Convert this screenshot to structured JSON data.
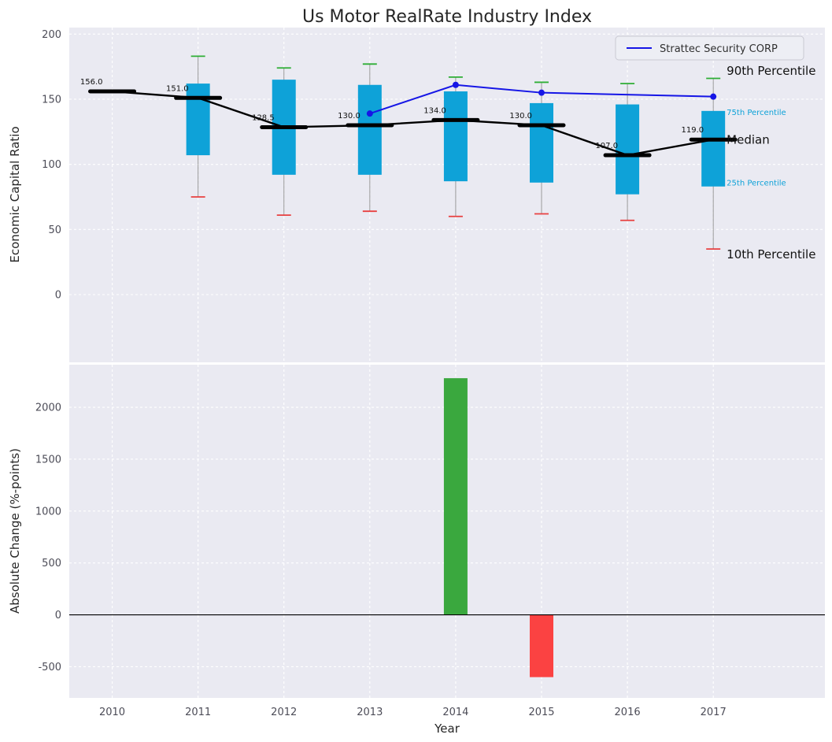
{
  "chart": {
    "title": "Us Motor RealRate Industry Index",
    "colors": {
      "panel_bg": "#eaeaf2",
      "grid": "#ffffff",
      "box_fill": "#0ea2d8",
      "whisker": "#9a9a9a",
      "cap_top": "#2eae35",
      "cap_bottom": "#e84040",
      "median": "#000000",
      "company_line": "#1616e6",
      "bar_positive": "#3aa83e",
      "bar_negative": "#fb4242"
    }
  },
  "chart_data": [
    {
      "type": "box",
      "title": "Us Motor RealRate Industry Index",
      "ylabel": "Economic Capital Ratio",
      "categories": [
        "2010",
        "2011",
        "2012",
        "2013",
        "2014",
        "2015",
        "2016",
        "2017"
      ],
      "p90": [
        156,
        183,
        174,
        177,
        167,
        163,
        162,
        166
      ],
      "p75": [
        156,
        162,
        165,
        161,
        156,
        147,
        146,
        141
      ],
      "median": [
        156,
        151,
        128.5,
        130,
        134,
        130,
        107,
        119
      ],
      "p25": [
        156,
        107,
        92,
        92,
        87,
        86,
        77,
        83
      ],
      "p10": [
        156,
        75,
        61,
        64,
        60,
        62,
        57,
        35
      ],
      "median_labels": [
        "156.0",
        "151.0",
        "128.5",
        "130.0",
        "134.0",
        "130.0",
        "107.0",
        "119.0"
      ],
      "overlay_line": {
        "name": "Strattec Security CORP",
        "x": [
          2013,
          2014,
          2015,
          2017
        ],
        "y": [
          139,
          161,
          155,
          152
        ]
      },
      "yticks": [
        0,
        50,
        100,
        150,
        200
      ],
      "ylim": [
        -52,
        205
      ],
      "xlim": [
        2009.5,
        2018.3
      ],
      "grid": true,
      "legend_position": "upper right",
      "annotations": [
        {
          "text": "90th Percentile",
          "y": 172,
          "color": "#111111",
          "fontsize": 15
        },
        {
          "text": "75th Percentile",
          "y": 140,
          "color": "#0ea2d8",
          "fontsize": 10
        },
        {
          "text": "Median",
          "y": 119,
          "color": "#111111",
          "fontsize": 15
        },
        {
          "text": "25th Percentile",
          "y": 86,
          "color": "#0ea2d8",
          "fontsize": 10
        },
        {
          "text": "10th Percentile",
          "y": 31,
          "color": "#111111",
          "fontsize": 15
        }
      ]
    },
    {
      "type": "bar",
      "xlabel": "Year",
      "ylabel": "Absolute Change (%-points)",
      "categories": [
        "2010",
        "2011",
        "2012",
        "2013",
        "2014",
        "2015",
        "2016",
        "2017"
      ],
      "values": [
        null,
        null,
        null,
        null,
        2280,
        -600,
        null,
        null
      ],
      "yticks": [
        -500,
        0,
        500,
        1000,
        1500,
        2000
      ],
      "ylim": [
        -800,
        2410
      ],
      "grid": true
    }
  ]
}
